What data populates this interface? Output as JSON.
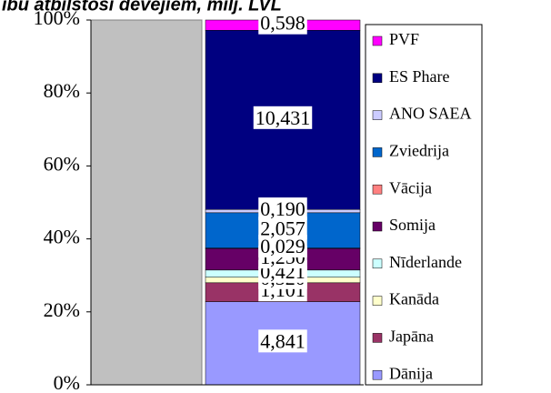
{
  "chart_data": {
    "type": "stacked_bar_100",
    "title": "ību atbilstoši devējiem, milj. LVL",
    "categories": [
      null
    ],
    "series": [
      {
        "name": "Dānija",
        "color": "#9999ff",
        "values": [
          4.841
        ],
        "value_labels": [
          "4,841"
        ]
      },
      {
        "name": "Japāna",
        "color": "#993366",
        "values": [
          1.101
        ],
        "value_labels": [
          "1,101"
        ]
      },
      {
        "name": "Kanāda",
        "color": "#ffffcc",
        "values": [
          0.32
        ],
        "value_labels": [
          "0,320"
        ]
      },
      {
        "name": "Nīderlande",
        "color": "#ccffff",
        "values": [
          0.421
        ],
        "value_labels": [
          "0,421"
        ]
      },
      {
        "name": "Somija",
        "color": "#660066",
        "values": [
          1.25
        ],
        "value_labels": [
          "1,250"
        ]
      },
      {
        "name": "Vācija",
        "color": "#ff8080",
        "values": [
          0.029
        ],
        "value_labels": [
          "0,029"
        ]
      },
      {
        "name": "Zviedrija",
        "color": "#0066cc",
        "values": [
          2.057
        ],
        "value_labels": [
          "2,057"
        ]
      },
      {
        "name": "ANO SAEA",
        "color": "#ccccff",
        "values": [
          0.19
        ],
        "value_labels": [
          "0,190"
        ]
      },
      {
        "name": "ES Phare",
        "color": "#000080",
        "values": [
          10.431
        ],
        "value_labels": [
          "10,431"
        ]
      },
      {
        "name": "PVF",
        "color": "#ff00ff",
        "values": [
          0.598
        ],
        "value_labels": [
          "0,598"
        ]
      }
    ],
    "ylim": [
      0,
      100
    ],
    "yticks": [
      {
        "value": 0,
        "label": "0%"
      },
      {
        "value": 20,
        "label": "20%"
      },
      {
        "value": 40,
        "label": "40%"
      },
      {
        "value": 60,
        "label": "60%"
      },
      {
        "value": 80,
        "label": "80%"
      },
      {
        "value": 100,
        "label": "100%"
      }
    ],
    "legend": "right"
  }
}
